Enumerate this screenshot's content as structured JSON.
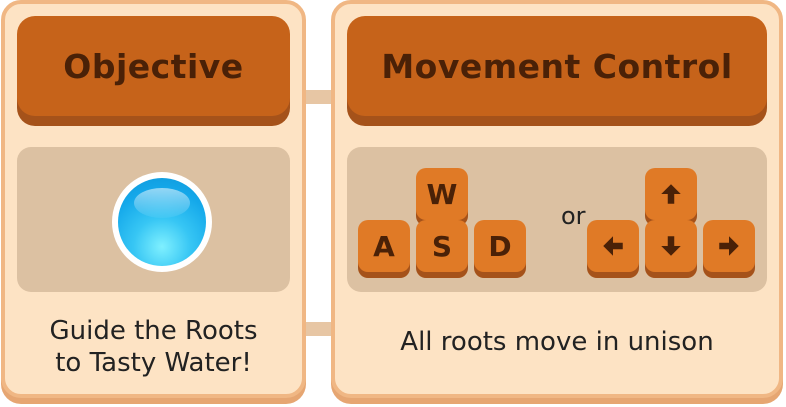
{
  "objective": {
    "title": "Objective",
    "caption_line1": "Guide the Roots",
    "caption_line2": "to Tasty Water!",
    "icon": "water-drop"
  },
  "movement": {
    "title": "Movement Control",
    "keys": {
      "up": "W",
      "left": "A",
      "down": "S",
      "right": "D"
    },
    "or_label": "or",
    "arrow_icons": [
      "arrow-up",
      "arrow-left",
      "arrow-down",
      "arrow-right"
    ],
    "caption": "All roots move in unison"
  },
  "colors": {
    "panel_bg": "#fde3c4",
    "panel_border": "#f0b784",
    "header_bg": "#c6631a",
    "header_text": "#4a2107",
    "key_bg": "#e07a26",
    "content_bg": "#dcc1a2",
    "water": "#14a8ea"
  }
}
